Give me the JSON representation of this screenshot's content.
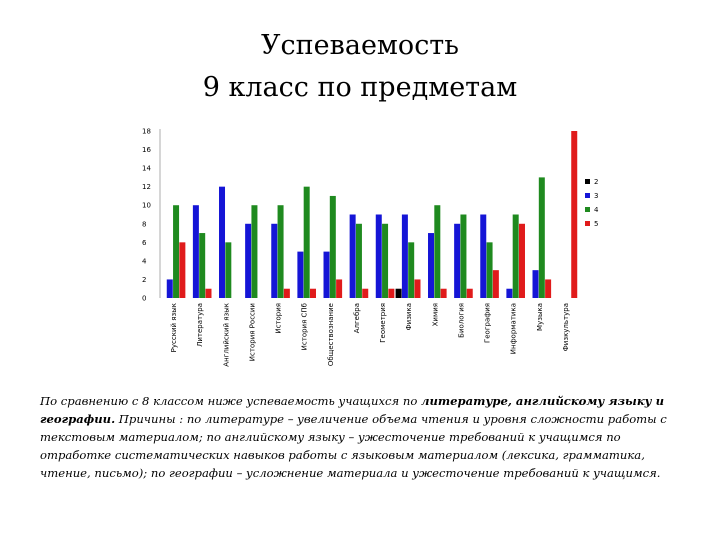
{
  "title": {
    "line1": "Успеваемость",
    "line2": "9 класс по предметам"
  },
  "chart_data": {
    "type": "bar",
    "ylim": [
      0,
      18
    ],
    "yticks": [
      0,
      2,
      4,
      6,
      8,
      10,
      12,
      14,
      16,
      18
    ],
    "grid": false,
    "legend_position": "right",
    "categories": [
      "Русский язык",
      "Литература",
      "Английский язык",
      "История России",
      "История",
      "История СПб",
      "Обществознание",
      "Алгебра",
      "Геометрия",
      "Физика",
      "Химия",
      "Биология",
      "География",
      "Информатика",
      "Музыка",
      "Физкультура"
    ],
    "series": [
      {
        "name": "2",
        "color": "#000000",
        "values": [
          0,
          0,
          0,
          0,
          0,
          0,
          0,
          0,
          0,
          1,
          0,
          0,
          0,
          0,
          0,
          0
        ]
      },
      {
        "name": "3",
        "color": "#1515d6",
        "values": [
          2,
          10,
          12,
          8,
          8,
          5,
          5,
          9,
          9,
          9,
          7,
          8,
          9,
          1,
          3,
          0
        ]
      },
      {
        "name": "4",
        "color": "#1f8a1f",
        "values": [
          10,
          7,
          6,
          10,
          10,
          12,
          11,
          8,
          8,
          6,
          10,
          9,
          6,
          9,
          13,
          0
        ]
      },
      {
        "name": "5",
        "color": "#e01b1b",
        "values": [
          6,
          1,
          0,
          0,
          1,
          1,
          2,
          1,
          1,
          2,
          1,
          1,
          3,
          8,
          2,
          18
        ]
      }
    ]
  },
  "caption": {
    "p1": "По сравнению с 8 классом ниже успеваемость учащихся по ",
    "b1": "литературе, английскому языку и географии.",
    "p2": " Причины : по литературе – увеличение объема чтения и уровня сложности работы с текстовым материалом; по английскому языку – ужесточение требований к учащимся по отработке систематических навыков работы с языковым материалом (лексика, грамматика, чтение, письмо); по географии – усложнение материала и ужесточение требований к учащимся."
  }
}
